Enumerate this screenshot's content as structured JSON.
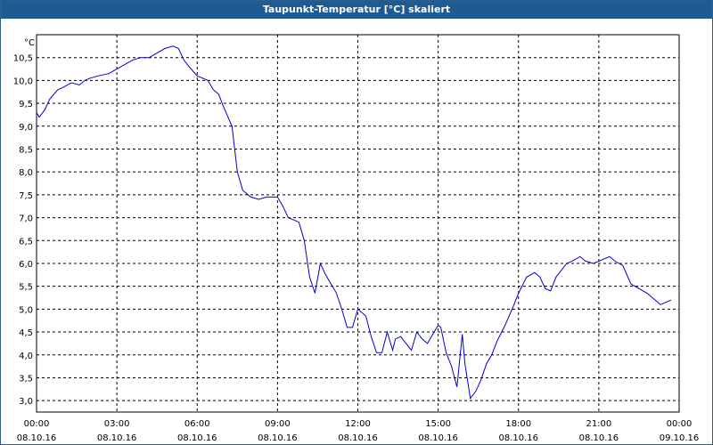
{
  "window": {
    "title": "Taupunkt-Temperatur [°C] skaliert"
  },
  "chart_data": {
    "type": "line",
    "title": "Taupunkt-Temperatur [°C] skaliert",
    "xlabel": "",
    "ylabel": "°C",
    "y_unit_label": "°C",
    "ylim": [
      2.75,
      11.0
    ],
    "y_ticks": [
      "3,0",
      "3,5",
      "4,0",
      "4,5",
      "5,0",
      "5,5",
      "6,0",
      "6,5",
      "7,0",
      "7,5",
      "8,0",
      "8,5",
      "9,0",
      "9,5",
      "10,0",
      "10,5"
    ],
    "y_tick_values": [
      3.0,
      3.5,
      4.0,
      4.5,
      5.0,
      5.5,
      6.0,
      6.5,
      7.0,
      7.5,
      8.0,
      8.5,
      9.0,
      9.5,
      10.0,
      10.5
    ],
    "x_ticks": [
      {
        "time": "00:00",
        "date": "08.10.16"
      },
      {
        "time": "03:00",
        "date": "08.10.16"
      },
      {
        "time": "06:00",
        "date": "08.10.16"
      },
      {
        "time": "09:00",
        "date": "08.10.16"
      },
      {
        "time": "12:00",
        "date": "08.10.16"
      },
      {
        "time": "15:00",
        "date": "08.10.16"
      },
      {
        "time": "18:00",
        "date": "08.10.16"
      },
      {
        "time": "21:00",
        "date": "08.10.16"
      },
      {
        "time": "00:00",
        "date": "09.10.16"
      }
    ],
    "x_tick_hours": [
      0,
      3,
      6,
      9,
      12,
      15,
      18,
      21,
      24
    ],
    "xlim_hours": [
      0,
      24
    ],
    "grid": true,
    "line_color": "#0000cc",
    "series": [
      {
        "x_hours": [
          0.0,
          0.1,
          0.3,
          0.5,
          0.8,
          1.0,
          1.3,
          1.6,
          1.8,
          2.0,
          2.3,
          2.7,
          3.0,
          3.3,
          3.6,
          3.9,
          4.2,
          4.5,
          4.8,
          5.1,
          5.3,
          5.5,
          5.7,
          6.0,
          6.2,
          6.4,
          6.6,
          6.8,
          7.0,
          7.3,
          7.5,
          7.7,
          8.0,
          8.3,
          8.6,
          9.0,
          9.2,
          9.4,
          9.6,
          9.8,
          10.0,
          10.2,
          10.4,
          10.6,
          10.8,
          11.0,
          11.2,
          11.4,
          11.6,
          11.8,
          12.0,
          12.1,
          12.3,
          12.5,
          12.7,
          12.9,
          13.1,
          13.3,
          13.4,
          13.6,
          13.8,
          14.0,
          14.2,
          14.4,
          14.6,
          14.8,
          15.0,
          15.1,
          15.3,
          15.5,
          15.7,
          15.9,
          16.0,
          16.2,
          16.4,
          16.6,
          16.8,
          17.0,
          17.2,
          17.5,
          17.8,
          18.0,
          18.3,
          18.6,
          18.8,
          19.0,
          19.2,
          19.4,
          19.6,
          19.8,
          20.0,
          20.3,
          20.5,
          20.8,
          21.0,
          21.2,
          21.4,
          21.6,
          21.9,
          22.2,
          22.5,
          22.8,
          23.0,
          23.3,
          23.5,
          23.7
        ],
        "y": [
          9.3,
          9.2,
          9.35,
          9.6,
          9.8,
          9.85,
          9.95,
          9.9,
          10.0,
          10.05,
          10.1,
          10.15,
          10.25,
          10.35,
          10.45,
          10.5,
          10.5,
          10.6,
          10.7,
          10.75,
          10.7,
          10.45,
          10.3,
          10.1,
          10.05,
          10.0,
          9.8,
          9.7,
          9.4,
          9.0,
          8.0,
          7.6,
          7.45,
          7.4,
          7.45,
          7.45,
          7.25,
          7.0,
          6.95,
          6.9,
          6.5,
          5.7,
          5.35,
          6.0,
          5.75,
          5.55,
          5.35,
          5.0,
          4.6,
          4.6,
          5.0,
          4.95,
          4.85,
          4.4,
          4.05,
          4.05,
          4.5,
          4.1,
          4.35,
          4.4,
          4.25,
          4.1,
          4.5,
          4.35,
          4.25,
          4.45,
          4.65,
          4.6,
          4.05,
          3.75,
          3.3,
          4.45,
          3.8,
          3.05,
          3.2,
          3.45,
          3.8,
          4.0,
          4.3,
          4.65,
          5.05,
          5.35,
          5.7,
          5.8,
          5.7,
          5.45,
          5.4,
          5.7,
          5.85,
          6.0,
          6.05,
          6.15,
          6.05,
          6.0,
          6.05,
          6.1,
          6.15,
          6.05,
          5.95,
          5.55,
          5.45,
          5.35,
          5.25,
          5.1,
          5.15,
          5.2
        ]
      }
    ]
  }
}
